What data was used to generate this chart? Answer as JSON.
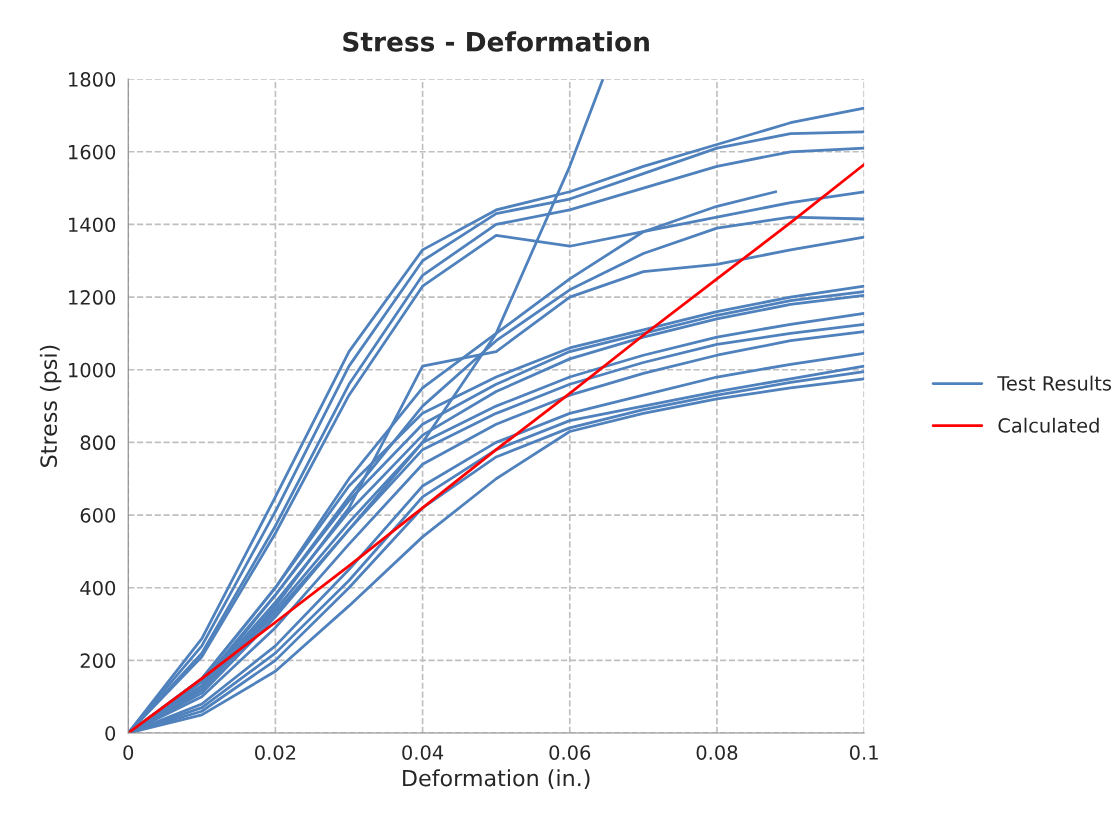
{
  "chart_data": {
    "type": "line",
    "title": "Stress - Deformation",
    "xlabel": "Deformation (in.)",
    "ylabel": "Stress (psi)",
    "x": [
      0,
      0.01,
      0.02,
      0.03,
      0.04,
      0.05,
      0.06,
      0.07,
      0.08,
      0.09,
      0.1
    ],
    "xlim": [
      0,
      0.1
    ],
    "xticks": [
      {
        "value": 0,
        "label": "0"
      },
      0.02,
      0.04,
      0.06,
      0.08,
      0.1
    ],
    "ylim": [
      0,
      1800
    ],
    "yticks": [
      0,
      200,
      400,
      600,
      800,
      1000,
      1200,
      1400,
      1600,
      1800
    ],
    "grid": true,
    "legend": "right",
    "line_style": "solid",
    "marker": "none",
    "series": [
      {
        "name": "Test Results",
        "color": "#4f81bd",
        "values": [
          0,
          260,
          650,
          1050,
          1330,
          1440,
          1490,
          1560,
          1620,
          1680,
          1720
        ]
      },
      {
        "color": "#4f81bd",
        "values": [
          0,
          240,
          610,
          1010,
          1300,
          1430,
          1470,
          1540,
          1610,
          1650,
          1655
        ]
      },
      {
        "color": "#4f81bd",
        "values": [
          0,
          220,
          570,
          960,
          1260,
          1400,
          1440,
          1500,
          1560,
          1600,
          1610
        ]
      },
      {
        "color": "#4f81bd",
        "values": [
          0,
          210,
          550,
          930,
          1230,
          1370,
          1340,
          1380,
          1420,
          1460,
          1490
        ]
      },
      {
        "color": "#4f81bd",
        "x": [
          0,
          0.01,
          0.02,
          0.03,
          0.04,
          0.05,
          0.06,
          0.0645
        ],
        "values": [
          0,
          120,
          330,
          560,
          800,
          1100,
          1560,
          1800
        ]
      },
      {
        "color": "#4f81bd",
        "x": [
          0,
          0.01,
          0.02,
          0.03,
          0.04,
          0.05,
          0.06,
          0.07,
          0.08,
          0.088
        ],
        "values": [
          0,
          150,
          400,
          700,
          950,
          1100,
          1250,
          1380,
          1450,
          1490
        ]
      },
      {
        "color": "#4f81bd",
        "values": [
          0,
          130,
          380,
          650,
          900,
          1080,
          1220,
          1320,
          1390,
          1420,
          1415
        ]
      },
      {
        "color": "#4f81bd",
        "values": [
          0,
          120,
          350,
          620,
          1010,
          1050,
          1200,
          1270,
          1290,
          1330,
          1365
        ]
      },
      {
        "color": "#4f81bd",
        "values": [
          0,
          150,
          400,
          680,
          880,
          980,
          1060,
          1110,
          1160,
          1200,
          1230
        ]
      },
      {
        "color": "#4f81bd",
        "values": [
          0,
          140,
          380,
          640,
          850,
          960,
          1050,
          1100,
          1150,
          1190,
          1215
        ]
      },
      {
        "color": "#4f81bd",
        "values": [
          0,
          130,
          360,
          610,
          820,
          940,
          1030,
          1090,
          1140,
          1180,
          1205
        ]
      },
      {
        "color": "#4f81bd",
        "values": [
          0,
          120,
          340,
          580,
          800,
          900,
          980,
          1040,
          1090,
          1125,
          1155
        ]
      },
      {
        "color": "#4f81bd",
        "values": [
          0,
          110,
          320,
          560,
          780,
          880,
          960,
          1020,
          1070,
          1100,
          1125
        ]
      },
      {
        "color": "#4f81bd",
        "values": [
          0,
          100,
          290,
          520,
          740,
          850,
          930,
          990,
          1040,
          1080,
          1105
        ]
      },
      {
        "color": "#4f81bd",
        "values": [
          0,
          80,
          240,
          450,
          680,
          800,
          880,
          930,
          980,
          1015,
          1045
        ]
      },
      {
        "color": "#4f81bd",
        "values": [
          0,
          70,
          220,
          420,
          650,
          780,
          860,
          900,
          940,
          975,
          1010
        ]
      },
      {
        "color": "#4f81bd",
        "values": [
          0,
          60,
          200,
          400,
          620,
          760,
          840,
          890,
          930,
          965,
          995
        ]
      },
      {
        "color": "#4f81bd",
        "values": [
          0,
          50,
          170,
          350,
          540,
          700,
          830,
          880,
          920,
          950,
          975
        ]
      },
      {
        "name": "Calculated",
        "color": "#ff0000",
        "values": [
          0,
          150,
          305,
          460,
          620,
          780,
          935,
          1095,
          1250,
          1405,
          1565
        ]
      }
    ]
  }
}
